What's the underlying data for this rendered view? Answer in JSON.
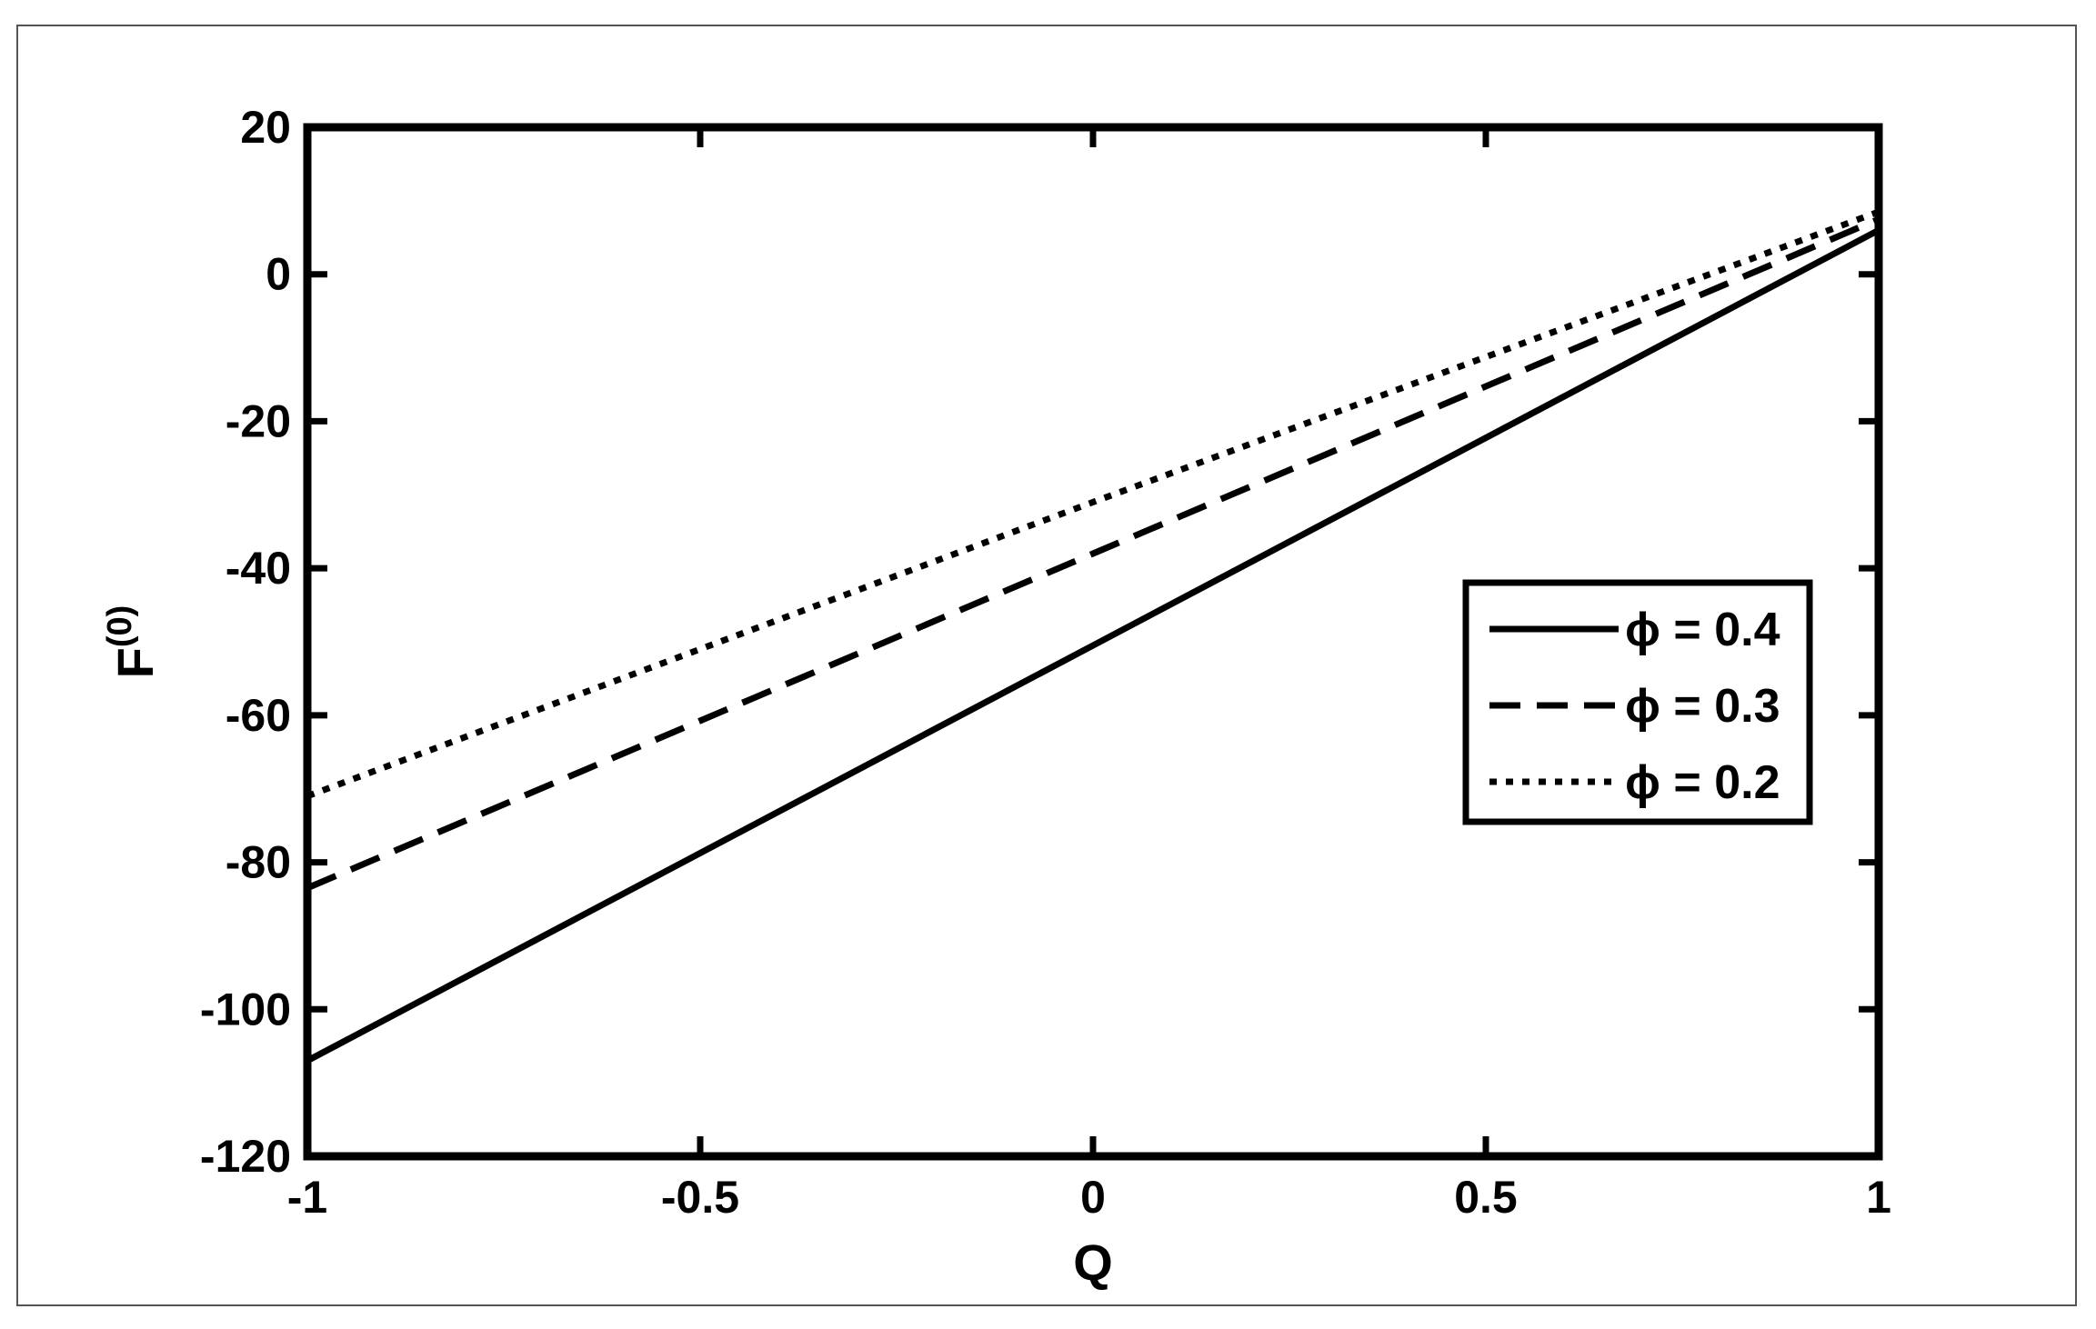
{
  "chart_data": {
    "type": "line",
    "xlabel": "Q",
    "ylabel": "F",
    "ylabel_superscript": "(0)",
    "xlim": [
      -1,
      1
    ],
    "ylim": [
      -120,
      20
    ],
    "xticks": [
      -1,
      -0.5,
      0,
      0.5,
      1
    ],
    "xtick_labels": [
      "-1",
      "-0.5",
      "0",
      "0.5",
      "1"
    ],
    "yticks": [
      20,
      0,
      -20,
      -40,
      -60,
      -80,
      -100,
      -120
    ],
    "ytick_labels": [
      "20",
      "0",
      "-20",
      "-40",
      "-60",
      "-80",
      "-100",
      "-120"
    ],
    "grid": false,
    "legend_position": "right",
    "series": [
      {
        "name": "ϕ = 0.4",
        "style": "solid",
        "x": [
          -1,
          0,
          1
        ],
        "values": [
          -107,
          -50.5,
          6
        ]
      },
      {
        "name": "ϕ = 0.3",
        "style": "dashed",
        "x": [
          -1,
          0,
          1
        ],
        "values": [
          -83.5,
          -38,
          7.5
        ]
      },
      {
        "name": "ϕ = 0.2",
        "style": "dotted",
        "x": [
          -1,
          0,
          1
        ],
        "values": [
          -71,
          -31,
          8.5
        ]
      }
    ]
  }
}
